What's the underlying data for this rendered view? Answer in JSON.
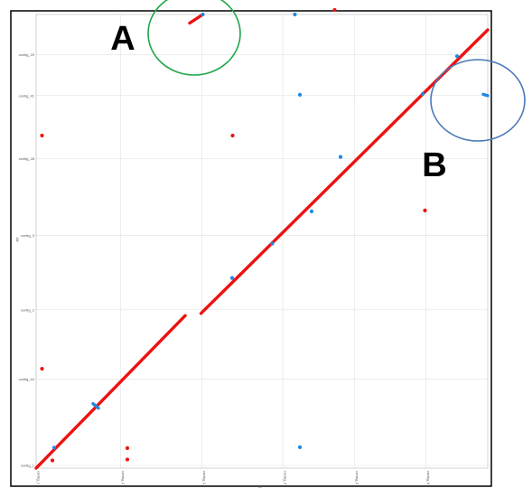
{
  "chart_data": {
    "type": "scatter",
    "title": "",
    "xlabel": "ref",
    "ylabel": "qry",
    "xlim": [
      0,
      100
    ],
    "ylim": [
      0,
      100
    ],
    "grid": true,
    "x_ticks": [
      {
        "pos": 0,
        "label": "contig_1"
      },
      {
        "pos": 18.7,
        "label": "contig_2"
      },
      {
        "pos": 36.7,
        "label": "contig_3"
      },
      {
        "pos": 54.6,
        "label": "contig_4"
      },
      {
        "pos": 70.5,
        "label": "contig_5"
      },
      {
        "pos": 86.3,
        "label": "contig_6"
      }
    ],
    "y_ticks": [
      {
        "pos": 0.6,
        "label": "contig_1"
      },
      {
        "pos": 19.6,
        "label": "contig_44"
      },
      {
        "pos": 34.9,
        "label": "contig_2"
      },
      {
        "pos": 51.3,
        "label": "contig_3"
      },
      {
        "pos": 68.2,
        "label": "contig_28"
      },
      {
        "pos": 82.1,
        "label": "contig_41"
      },
      {
        "pos": 91.1,
        "label": "contig_29"
      }
    ],
    "series": [
      {
        "color": "#ee1111",
        "segments": [
          {
            "x": [
              0,
              33
            ],
            "y": [
              0,
              33.6
            ]
          },
          {
            "x": [
              36.5,
              100
            ],
            "y": [
              34.1,
              96.6
            ]
          },
          {
            "x": [
              34,
              36.9
            ],
            "y": [
              98.1,
              100
            ]
          }
        ],
        "points": [
          {
            "x": 1.3,
            "y": 73.3
          },
          {
            "x": 1.3,
            "y": 21.9
          },
          {
            "x": 3.6,
            "y": 1.7
          },
          {
            "x": 20.2,
            "y": 4.4
          },
          {
            "x": 20.2,
            "y": 1.9
          },
          {
            "x": 43.5,
            "y": 73.3
          },
          {
            "x": 66.1,
            "y": 101
          },
          {
            "x": 86.1,
            "y": 56.8
          }
        ]
      },
      {
        "color": "#1e88e5",
        "segments": [
          {
            "x": [
              12.6,
              13.8
            ],
            "y": [
              14.2,
              13.2
            ]
          },
          {
            "x": [
              99,
              100
            ],
            "y": [
              82.4,
              82.1
            ]
          }
        ],
        "points": [
          {
            "x": 4,
            "y": 4.5
          },
          {
            "x": 36.9,
            "y": 100
          },
          {
            "x": 43.4,
            "y": 41.9
          },
          {
            "x": 52.3,
            "y": 49.5
          },
          {
            "x": 57.3,
            "y": 100
          },
          {
            "x": 58.4,
            "y": 82.3
          },
          {
            "x": 58.4,
            "y": 4.6
          },
          {
            "x": 61,
            "y": 56.6
          },
          {
            "x": 67.4,
            "y": 68.6
          },
          {
            "x": 85.6,
            "y": 82.5
          },
          {
            "x": 93.2,
            "y": 90.8
          }
        ]
      }
    ],
    "annotations": [
      {
        "label": "A",
        "shape": "circle",
        "color": "#1fa64a",
        "target_x": 36,
        "target_y": 98.5
      },
      {
        "label": "B",
        "shape": "circle",
        "color": "#4a78b8",
        "target_x": 99.5,
        "target_y": 82.3
      }
    ]
  }
}
